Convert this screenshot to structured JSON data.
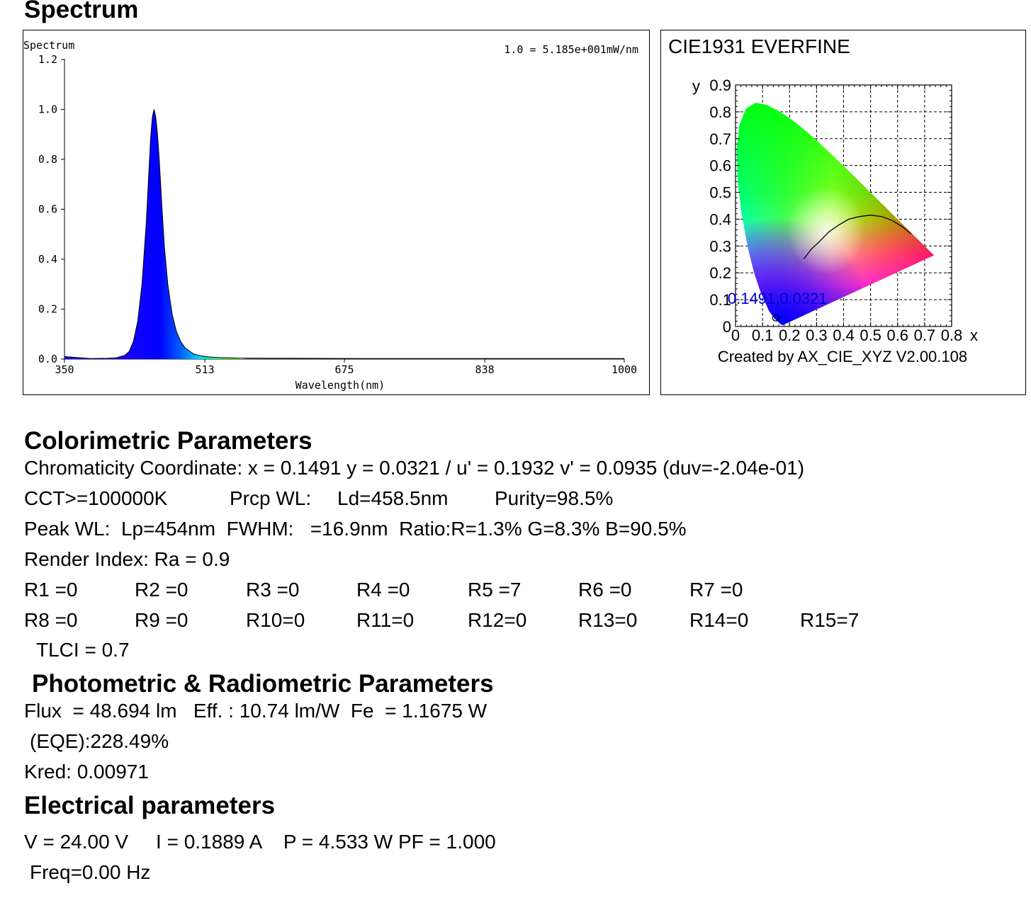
{
  "section_titles": {
    "spectrum": "Spectrum",
    "colorimetric": "Colorimetric Parameters",
    "photometric": "Photometric & Radiometric Parameters",
    "electrical": "Electrical parameters"
  },
  "chart_data": [
    {
      "type": "line",
      "title": "Spectrum",
      "annotation": "1.0 = 5.185e+001mW/nm",
      "xlabel": "Wavelength(nm)",
      "ylabel": "",
      "xlim": [
        350,
        1000
      ],
      "ylim": [
        0,
        1.2
      ],
      "x_tick_labels": [
        "350",
        "513",
        "675",
        "838",
        "1000"
      ],
      "y_tick_labels": [
        "0.0",
        "0.2",
        "0.4",
        "0.6",
        "0.8",
        "1.0",
        "1.2"
      ],
      "fill": "spectral colors under curve",
      "series": [
        {
          "x": [
            350,
            380,
            400,
            410,
            420,
            425,
            430,
            435,
            440,
            445,
            448,
            450,
            452,
            454,
            456,
            458,
            460,
            463,
            466,
            470,
            475,
            480,
            485,
            490,
            500,
            510,
            520,
            530,
            550,
            600,
            700,
            800,
            900,
            1000
          ],
          "values": [
            0.01,
            0.002,
            0.003,
            0.005,
            0.015,
            0.03,
            0.07,
            0.15,
            0.3,
            0.55,
            0.75,
            0.88,
            0.97,
            1.0,
            0.97,
            0.9,
            0.8,
            0.62,
            0.45,
            0.3,
            0.18,
            0.11,
            0.07,
            0.045,
            0.02,
            0.012,
            0.008,
            0.006,
            0.004,
            0.003,
            0.002,
            0.002,
            0.002,
            0.002
          ]
        }
      ]
    },
    {
      "type": "scatter",
      "title": "CIE1931  EVERFINE",
      "footer": "Created by AX_CIE_XYZ V2.00.108",
      "xlabel": "x",
      "ylabel": "y",
      "xlim": [
        0,
        0.8
      ],
      "ylim": [
        0,
        0.9
      ],
      "x_tick_labels": [
        "0",
        "0.1",
        "0.2",
        "0.3",
        "0.4",
        "0.5",
        "0.6",
        "0.7",
        "0.8"
      ],
      "y_tick_labels": [
        "0",
        "0.1",
        "0.2",
        "0.3",
        "0.4",
        "0.5",
        "0.6",
        "0.7",
        "0.8",
        "0.9"
      ],
      "grid": true,
      "point": {
        "x": 0.1491,
        "y": 0.0321,
        "label": "0.1491,0.0321"
      },
      "planckian_locus": "black curve from x≈0.25 to x≈0.67"
    }
  ],
  "colorimetric": {
    "chromaticity": "Chromaticity Coordinate: x = 0.1491 y = 0.0321 / u' = 0.1932 v' = 0.0935 (duv=-2.04e-01)",
    "cct": "CCT>=100000K",
    "prcp_wl": "Prcp WL:",
    "ld": "Ld=458.5nm",
    "purity": "Purity=98.5%",
    "peak": "Peak WL:  Lp=454nm  FWHM:   =16.9nm  Ratio:R=1.3% G=8.3% B=90.5%",
    "render": "Render Index: Ra = 0.9",
    "r_row1": [
      "R1 =0",
      "R2 =0",
      "R3 =0",
      "R4 =0",
      "R5 =7",
      "R6 =0",
      "R7 =0"
    ],
    "r_row2": [
      "R8 =0",
      "R9 =0",
      "R10=0",
      "R11=0",
      "R12=0",
      "R13=0",
      "R14=0",
      "R15=7"
    ],
    "tlci": "TLCI = 0.7"
  },
  "photometric": {
    "line1": "Flux  = 48.694 lm   Eff. : 10.74 lm/W  Fe  = 1.1675 W",
    "eqe": "(EQE):228.49%",
    "kred": "Kred: 0.00971"
  },
  "electrical": {
    "line1": "V = 24.00 V     I = 0.1889 A    P = 4.533 W PF = 1.000",
    "freq": "Freq=0.00 Hz"
  }
}
